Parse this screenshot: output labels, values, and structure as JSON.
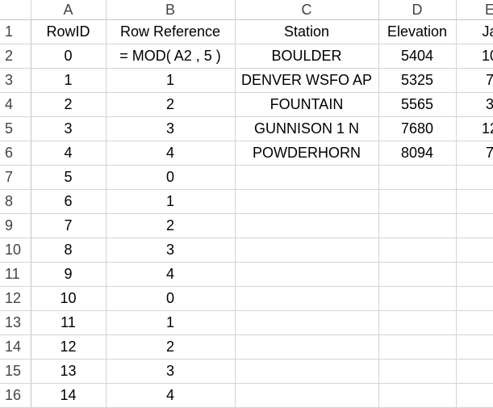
{
  "columns": [
    "A",
    "B",
    "C",
    "D",
    "E"
  ],
  "rows": [
    {
      "num": "1",
      "a": "RowID",
      "b": "Row Reference",
      "c": "Station",
      "d": "Elevation",
      "e": "Ja"
    },
    {
      "num": "2",
      "a": "0",
      "b": "= MOD( A2 , 5 )",
      "c": "BOULDER",
      "d": "5404",
      "e": "10"
    },
    {
      "num": "3",
      "a": "1",
      "b": "1",
      "c": "DENVER WSFO AP",
      "d": "5325",
      "e": "7"
    },
    {
      "num": "4",
      "a": "2",
      "b": "2",
      "c": "FOUNTAIN",
      "d": "5565",
      "e": "3"
    },
    {
      "num": "5",
      "a": "3",
      "b": "3",
      "c": "GUNNISON 1 N",
      "d": "7680",
      "e": "12"
    },
    {
      "num": "6",
      "a": "4",
      "b": "4",
      "c": "POWDERHORN",
      "d": "8094",
      "e": "7"
    },
    {
      "num": "7",
      "a": "5",
      "b": "0",
      "c": "",
      "d": "",
      "e": ""
    },
    {
      "num": "8",
      "a": "6",
      "b": "1",
      "c": "",
      "d": "",
      "e": ""
    },
    {
      "num": "9",
      "a": "7",
      "b": "2",
      "c": "",
      "d": "",
      "e": ""
    },
    {
      "num": "10",
      "a": "8",
      "b": "3",
      "c": "",
      "d": "",
      "e": ""
    },
    {
      "num": "11",
      "a": "9",
      "b": "4",
      "c": "",
      "d": "",
      "e": ""
    },
    {
      "num": "12",
      "a": "10",
      "b": "0",
      "c": "",
      "d": "",
      "e": ""
    },
    {
      "num": "13",
      "a": "11",
      "b": "1",
      "c": "",
      "d": "",
      "e": ""
    },
    {
      "num": "14",
      "a": "12",
      "b": "2",
      "c": "",
      "d": "",
      "e": ""
    },
    {
      "num": "15",
      "a": "13",
      "b": "3",
      "c": "",
      "d": "",
      "e": ""
    },
    {
      "num": "16",
      "a": "14",
      "b": "4",
      "c": "",
      "d": "",
      "e": ""
    }
  ]
}
